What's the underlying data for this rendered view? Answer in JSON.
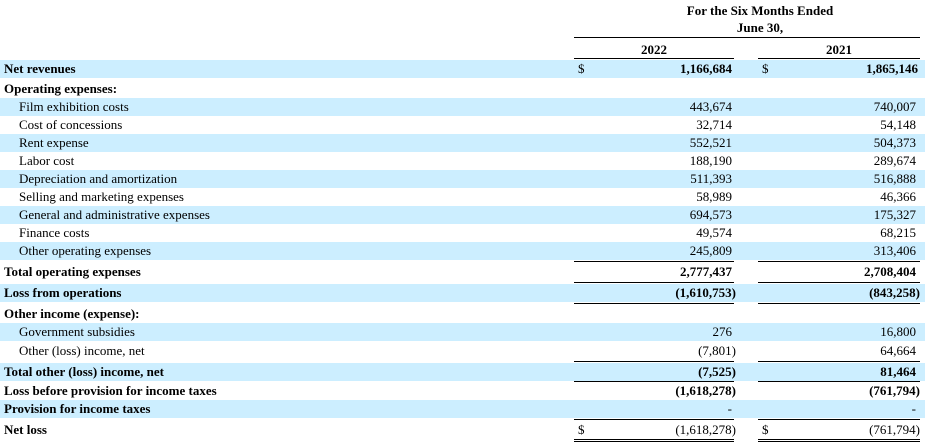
{
  "header": {
    "period_line1": "For the Six Months Ended",
    "period_line2": "June 30,",
    "col_2022": "2022",
    "col_2021": "2021"
  },
  "currency_symbol": "$",
  "rows": [
    {
      "label": "Net revenues",
      "v2022": "1,166,684",
      "v2021": "1,865,146"
    },
    {
      "label": "Operating expenses:",
      "v2022": "",
      "v2021": ""
    },
    {
      "label": "Film exhibition costs",
      "v2022": "443,674",
      "v2021": "740,007"
    },
    {
      "label": "Cost of concessions",
      "v2022": "32,714",
      "v2021": "54,148"
    },
    {
      "label": "Rent expense",
      "v2022": "552,521",
      "v2021": "504,373"
    },
    {
      "label": "Labor cost",
      "v2022": "188,190",
      "v2021": "289,674"
    },
    {
      "label": "Depreciation and amortization",
      "v2022": "511,393",
      "v2021": "516,888"
    },
    {
      "label": "Selling and marketing expenses",
      "v2022": "58,989",
      "v2021": "46,366"
    },
    {
      "label": "General and administrative expenses",
      "v2022": "694,573",
      "v2021": "175,327"
    },
    {
      "label": "Finance costs",
      "v2022": "49,574",
      "v2021": "68,215"
    },
    {
      "label": "Other operating expenses",
      "v2022": "245,809",
      "v2021": "313,406"
    },
    {
      "label": "Total operating expenses",
      "v2022": "2,777,437",
      "v2021": "2,708,404"
    },
    {
      "label": "Loss from operations",
      "v2022": "(1,610,753)",
      "v2021": "(843,258)"
    },
    {
      "label": "Other income (expense):",
      "v2022": "",
      "v2021": ""
    },
    {
      "label": "Government subsidies",
      "v2022": "276",
      "v2021": "16,800"
    },
    {
      "label": "Other (loss) income, net",
      "v2022": "(7,801)",
      "v2021": "64,664"
    },
    {
      "label": "Total other (loss) income, net",
      "v2022": "(7,525)",
      "v2021": "81,464"
    },
    {
      "label": "Loss before provision for income taxes",
      "v2022": "(1,618,278)",
      "v2021": "(761,794)"
    },
    {
      "label": "Provision for income taxes",
      "v2022": "-",
      "v2021": "-"
    },
    {
      "label": "Net loss",
      "v2022": "(1,618,278)",
      "v2021": "(761,794)"
    }
  ]
}
